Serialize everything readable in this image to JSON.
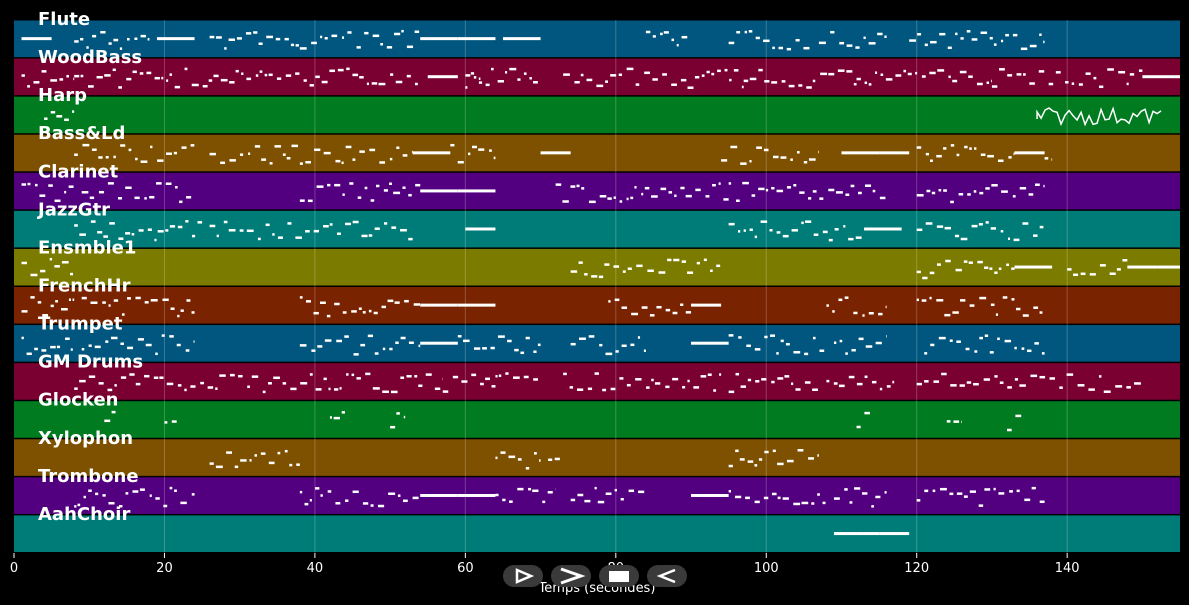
{
  "chart_data": {
    "type": "piano-roll",
    "xlabel": "Temps (secondes)",
    "xlim": [
      0,
      155
    ],
    "x_ticks": [
      0,
      20,
      40,
      60,
      80,
      100,
      120,
      140
    ],
    "grid": true,
    "tracks": [
      {
        "name": "Flute",
        "color": "#00567e",
        "notes": [
          [
            1,
            5
          ],
          [
            8,
            18
          ],
          [
            19,
            24
          ],
          [
            26,
            38
          ],
          [
            38,
            54
          ],
          [
            54,
            59
          ],
          [
            59,
            64
          ],
          [
            65,
            70
          ],
          [
            84,
            90
          ],
          [
            95,
            106
          ],
          [
            107,
            116
          ],
          [
            119,
            137
          ]
        ]
      },
      {
        "name": "WoodBass",
        "color": "#7a0032",
        "notes": [
          [
            1,
            8
          ],
          [
            8,
            54
          ],
          [
            55,
            59
          ],
          [
            60,
            62
          ],
          [
            60,
            70
          ],
          [
            73,
            97
          ],
          [
            97,
            112
          ],
          [
            112,
            130
          ],
          [
            130,
            150
          ],
          [
            150,
            155
          ]
        ]
      },
      {
        "name": "Harp",
        "color": "#007b1f",
        "notes": [
          [
            4,
            8
          ],
          [
            136,
            153
          ]
        ]
      },
      {
        "name": "Bass&Ld",
        "color": "#7e5100",
        "notes": [
          [
            8,
            24
          ],
          [
            26,
            38
          ],
          [
            38,
            53
          ],
          [
            53,
            58
          ],
          [
            58,
            64
          ],
          [
            70,
            74
          ],
          [
            94,
            107
          ],
          [
            110,
            115
          ],
          [
            115,
            119
          ],
          [
            120,
            133
          ],
          [
            133,
            137
          ],
          [
            137,
            138
          ]
        ]
      },
      {
        "name": "Clarinet",
        "color": "#520080",
        "notes": [
          [
            1,
            8
          ],
          [
            9,
            24
          ],
          [
            38,
            54
          ],
          [
            54,
            59
          ],
          [
            59,
            64
          ],
          [
            72,
            95
          ],
          [
            95,
            116
          ],
          [
            120,
            137
          ]
        ]
      },
      {
        "name": "JazzGtr",
        "color": "#007c78",
        "notes": [
          [
            8,
            25
          ],
          [
            26,
            53
          ],
          [
            60,
            64
          ],
          [
            95,
            113
          ],
          [
            113,
            118
          ],
          [
            120,
            137
          ]
        ]
      },
      {
        "name": "Ensmble1",
        "color": "#7b7b00",
        "notes": [
          [
            1,
            8
          ],
          [
            74,
            94
          ],
          [
            120,
            133
          ],
          [
            133,
            138
          ],
          [
            140,
            148
          ],
          [
            148,
            152
          ],
          [
            152,
            155
          ]
        ]
      },
      {
        "name": "FrenchHr",
        "color": "#7a2300",
        "notes": [
          [
            1,
            8
          ],
          [
            9,
            24
          ],
          [
            38,
            54
          ],
          [
            54,
            59
          ],
          [
            59,
            64
          ],
          [
            79,
            90
          ],
          [
            90,
            94
          ],
          [
            108,
            116
          ],
          [
            120,
            137
          ]
        ]
      },
      {
        "name": "Trumpet",
        "color": "#00567e",
        "notes": [
          [
            1,
            8
          ],
          [
            9,
            24
          ],
          [
            38,
            54
          ],
          [
            54,
            59
          ],
          [
            59,
            70
          ],
          [
            74,
            84
          ],
          [
            90,
            95
          ],
          [
            95,
            108
          ],
          [
            109,
            116
          ],
          [
            121,
            137
          ]
        ]
      },
      {
        "name": "GM Drums",
        "color": "#7a0032",
        "notes": [
          [
            8,
            57
          ],
          [
            57,
            64
          ],
          [
            64,
            70
          ],
          [
            73,
            94
          ],
          [
            95,
            107
          ],
          [
            108,
            117
          ],
          [
            120,
            150
          ]
        ]
      },
      {
        "name": "Glocken",
        "color": "#007b1f",
        "notes": [
          [
            12,
            14
          ],
          [
            20,
            22
          ],
          [
            42,
            44
          ],
          [
            50,
            52
          ],
          [
            112,
            114
          ],
          [
            124,
            126
          ],
          [
            132,
            134
          ]
        ]
      },
      {
        "name": "Xylophon",
        "color": "#7e5100",
        "notes": [
          [
            26,
            38
          ],
          [
            64,
            70
          ],
          [
            71,
            73
          ],
          [
            95,
            107
          ]
        ]
      },
      {
        "name": "Trombone",
        "color": "#520080",
        "notes": [
          [
            8,
            24
          ],
          [
            38,
            54
          ],
          [
            54,
            59
          ],
          [
            59,
            64
          ],
          [
            64,
            72
          ],
          [
            74,
            84
          ],
          [
            90,
            95
          ],
          [
            95,
            108
          ],
          [
            109,
            116
          ],
          [
            120,
            137
          ]
        ]
      },
      {
        "name": "AahChoir",
        "color": "#007c78",
        "notes": [
          [
            109,
            112
          ],
          [
            112,
            115
          ],
          [
            115,
            119
          ]
        ]
      }
    ]
  },
  "controls": {
    "play_icon": "play-icon",
    "forward_icon": "forward-icon",
    "stop_icon": "stop-icon",
    "back_icon": "back-icon"
  }
}
